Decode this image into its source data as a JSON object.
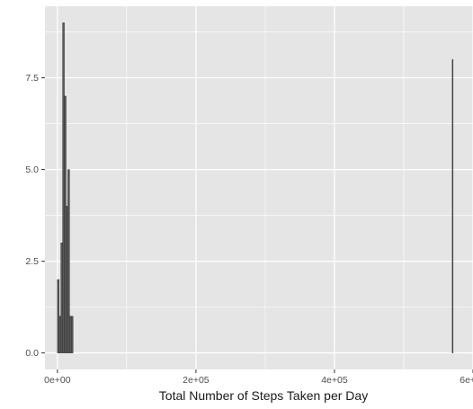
{
  "chart_data": {
    "type": "bar",
    "title": "",
    "xlabel": "Total Number of Steps Taken per Day",
    "ylabel": "",
    "xlim": [
      -18000,
      600000
    ],
    "ylim": [
      -0.45,
      9.45
    ],
    "x_ticks": [
      0,
      200000,
      400000,
      600000
    ],
    "x_tick_labels": [
      "0e+00",
      "2e+05",
      "4e+05",
      "6e+05"
    ],
    "y_ticks": [
      0,
      2.5,
      5,
      7.5
    ],
    "y_tick_labels": [
      "0.0",
      "2.5",
      "5.0",
      "7.5"
    ],
    "grid": true,
    "panel_background": "#e5e5e5",
    "grid_color": "#ffffff",
    "bar_color": "#595959",
    "bar_outline": "#333333",
    "bins": [
      {
        "x": 0,
        "width": 2500,
        "count": 2
      },
      {
        "x": 2500,
        "width": 2500,
        "count": 1
      },
      {
        "x": 5000,
        "width": 2500,
        "count": 3
      },
      {
        "x": 7500,
        "width": 2500,
        "count": 9
      },
      {
        "x": 10000,
        "width": 2500,
        "count": 7
      },
      {
        "x": 12500,
        "width": 2500,
        "count": 4
      },
      {
        "x": 15000,
        "width": 2500,
        "count": 5
      },
      {
        "x": 17500,
        "width": 2500,
        "count": 1
      },
      {
        "x": 20000,
        "width": 2500,
        "count": 1
      },
      {
        "x": 570000,
        "width": 1200,
        "count": 8
      }
    ]
  }
}
